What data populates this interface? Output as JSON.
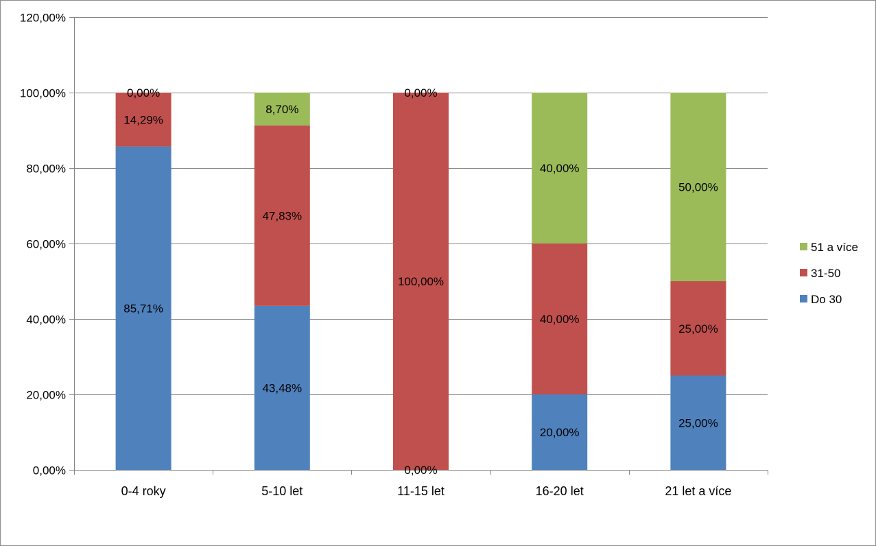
{
  "chart_data": {
    "type": "bar",
    "stacked": true,
    "categories": [
      "0-4 roky",
      "5-10 let",
      "11-15 let",
      "16-20 let",
      "21 let a více"
    ],
    "series": [
      {
        "name": "Do 30",
        "color": "#4f81bd",
        "values": [
          85.71,
          43.48,
          0.0,
          20.0,
          25.0
        ],
        "labels": [
          "85,71%",
          "43,48%",
          "0,00%",
          "20,00%",
          "25,00%"
        ]
      },
      {
        "name": "31-50",
        "color": "#c0504d",
        "values": [
          14.29,
          47.83,
          100.0,
          40.0,
          25.0
        ],
        "labels": [
          "14,29%",
          "47,83%",
          "100,00%",
          "40,00%",
          "25,00%"
        ]
      },
      {
        "name": "51 a více",
        "color": "#9bbb59",
        "values": [
          0.0,
          8.7,
          0.0,
          40.0,
          50.0
        ],
        "labels": [
          "0,00%",
          "8,70%",
          "0,00%",
          "40,00%",
          "50,00%"
        ]
      }
    ],
    "y_ticks": [
      "0,00%",
      "20,00%",
      "40,00%",
      "60,00%",
      "80,00%",
      "100,00%",
      "120,00%"
    ],
    "ylim": [
      0,
      120
    ],
    "grid": true,
    "legend_position": "right",
    "legend_order": [
      "51 a více",
      "31-50",
      "Do 30"
    ]
  }
}
